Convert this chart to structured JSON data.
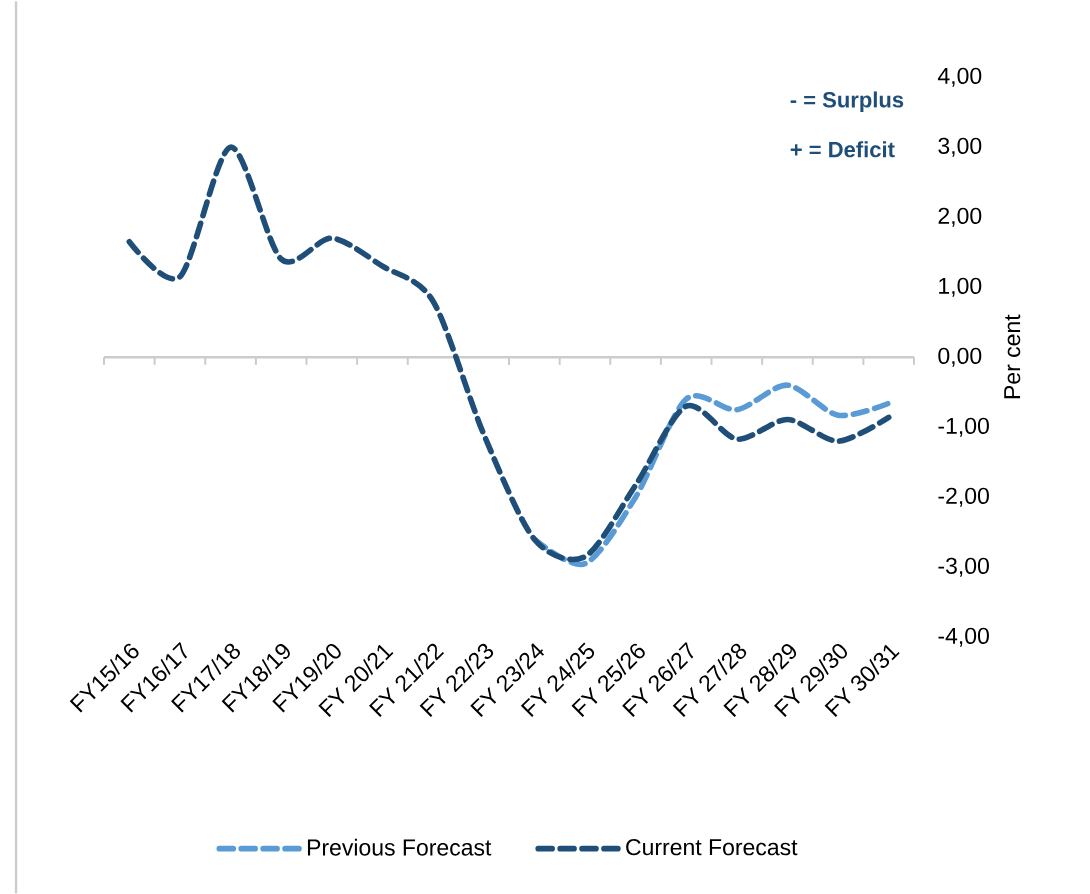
{
  "chart_data": {
    "type": "line",
    "categories": [
      "FY15/16",
      "FY16/17",
      "FY17/18",
      "FY18/19",
      "FY19/20",
      "FY 20/21",
      "FY 21/22",
      "FY 22/23",
      "FY 23/24",
      "FY 24/25",
      "FY 25/26",
      "FY 26/27",
      "FY 27/28",
      "FY 28/29",
      "FY 29/30",
      "FY 30/31"
    ],
    "series": [
      {
        "name": "Previous Forecast",
        "color": "#5b9bd5",
        "values": [
          null,
          null,
          null,
          null,
          null,
          null,
          null,
          null,
          -2.6,
          -2.95,
          -2.0,
          -0.6,
          -0.75,
          -0.4,
          -0.83,
          -0.66
        ]
      },
      {
        "name": "Current Forecast",
        "color": "#1f4e79",
        "values": [
          1.65,
          1.15,
          3.0,
          1.4,
          1.7,
          1.3,
          0.8,
          -1.1,
          -2.6,
          -2.85,
          -1.83,
          -0.7,
          -1.17,
          -0.89,
          -1.2,
          -0.86
        ]
      }
    ],
    "ylabel": "Per cent",
    "ylim": [
      -4,
      4
    ],
    "yticks": [
      {
        "value": -4,
        "label": "-4,00"
      },
      {
        "value": -3,
        "label": "-3,00"
      },
      {
        "value": -2,
        "label": "-2,00"
      },
      {
        "value": -1,
        "label": "-1,00"
      },
      {
        "value": 0,
        "label": "0,00"
      },
      {
        "value": 1,
        "label": "1,00"
      },
      {
        "value": 2,
        "label": "2,00"
      },
      {
        "value": 3,
        "label": "3,00"
      },
      {
        "value": 4,
        "label": "4,00"
      }
    ],
    "annotations": [
      "- = Surplus",
      "+ = Deficit"
    ],
    "legend": "bottom",
    "line_style": "dashed"
  }
}
